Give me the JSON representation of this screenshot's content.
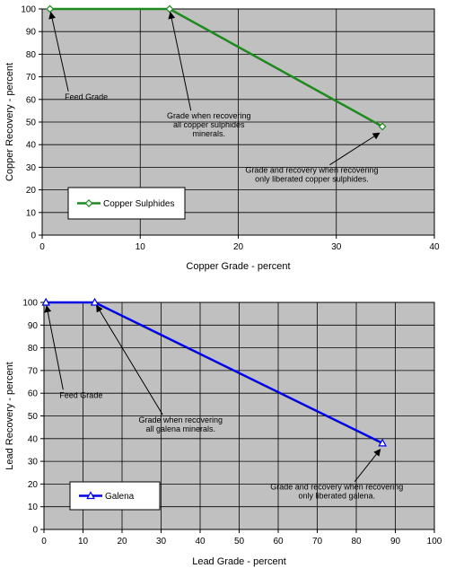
{
  "chart_data": [
    {
      "type": "line",
      "xlabel": "Copper Grade - percent",
      "ylabel": "Copper Recovery - percent",
      "xlim": [
        0,
        40
      ],
      "ylim": [
        0,
        100
      ],
      "xticks": [
        0,
        10,
        20,
        30,
        40
      ],
      "yticks": [
        0,
        10,
        20,
        30,
        40,
        50,
        60,
        70,
        80,
        90,
        100
      ],
      "grid": true,
      "legend_position": "bottom-left",
      "series": [
        {
          "name": "Copper Sulphides",
          "color": "#1e8a1e",
          "marker": "diamond",
          "x": [
            0.8,
            13,
            34.7
          ],
          "y": [
            100,
            100,
            48
          ]
        }
      ],
      "annotations": [
        {
          "lines": [
            "Feed Grade"
          ],
          "target": [
            0.8,
            100
          ],
          "text_at": [
            4.5,
            60
          ]
        },
        {
          "lines": [
            "Grade when recovering",
            "all copper sulphides",
            "minerals."
          ],
          "target": [
            13,
            100
          ],
          "text_at": [
            17,
            51.5
          ]
        },
        {
          "lines": [
            "Grade and recovery when recovering",
            "only liberated copper sulphides."
          ],
          "target": [
            34.7,
            46
          ],
          "text_at": [
            27.5,
            27.5
          ]
        }
      ]
    },
    {
      "type": "line",
      "xlabel": "Lead Grade - percent",
      "ylabel": "Lead Recovery - percent",
      "xlim": [
        0,
        100
      ],
      "ylim": [
        0,
        100
      ],
      "xticks": [
        0,
        10,
        20,
        30,
        40,
        50,
        60,
        70,
        80,
        90,
        100
      ],
      "yticks": [
        0,
        10,
        20,
        30,
        40,
        50,
        60,
        70,
        80,
        90,
        100
      ],
      "grid": true,
      "legend_position": "bottom-left",
      "series": [
        {
          "name": "Galena",
          "color": "#0000e6",
          "marker": "triangle",
          "x": [
            0.5,
            13,
            86.7
          ],
          "y": [
            100,
            100,
            38
          ]
        }
      ],
      "annotations": [
        {
          "lines": [
            "Feed Grade"
          ],
          "target": [
            0.5,
            100
          ],
          "text_at": [
            9.5,
            58
          ]
        },
        {
          "lines": [
            "Grade when recovering",
            "all galena minerals."
          ],
          "target": [
            13,
            100
          ],
          "text_at": [
            35,
            47
          ]
        },
        {
          "lines": [
            "Grade and recovery when recovering",
            "only liberated galena."
          ],
          "target": [
            86.7,
            36.5
          ],
          "text_at": [
            75,
            17.5
          ]
        }
      ]
    }
  ]
}
